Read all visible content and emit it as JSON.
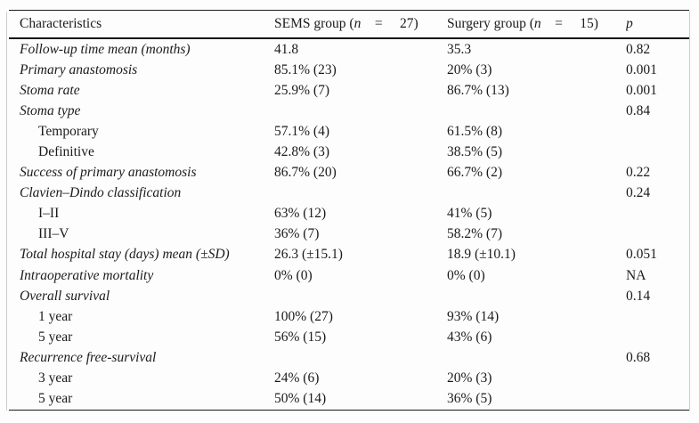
{
  "colors": {
    "background": "#fdfdfd",
    "text": "#1b1b1b",
    "rule": "#1a1a1a",
    "scan_edge": "#cccccc"
  },
  "table": {
    "header": {
      "characteristics": "Characteristics",
      "sems": {
        "prefix": "SEMS group (",
        "n": "n",
        "rest": " =  27)"
      },
      "surgery": {
        "prefix": "Surgery group (",
        "n": "n",
        "rest": " =  15)"
      },
      "p": "p"
    },
    "rows": [
      {
        "label": "Follow-up time mean (months)",
        "indent": false,
        "sems": "41.8",
        "surgery": "35.3",
        "p": "0.82"
      },
      {
        "label": "Primary anastomosis",
        "indent": false,
        "sems": "85.1% (23)",
        "surgery": "20% (3)",
        "p": "0.001"
      },
      {
        "label": "Stoma rate",
        "indent": false,
        "sems": "25.9% (7)",
        "surgery": "86.7% (13)",
        "p": "0.001"
      },
      {
        "label": "Stoma type",
        "indent": false,
        "sems": "",
        "surgery": "",
        "p": "0.84"
      },
      {
        "label": "Temporary",
        "indent": true,
        "sems": "57.1% (4)",
        "surgery": "61.5% (8)",
        "p": ""
      },
      {
        "label": "Definitive",
        "indent": true,
        "sems": "42.8% (3)",
        "surgery": "38.5% (5)",
        "p": ""
      },
      {
        "label": "Success of primary anastomosis",
        "indent": false,
        "sems": "86.7% (20)",
        "surgery": "66.7% (2)",
        "p": "0.22"
      },
      {
        "label": "Clavien–Dindo classification",
        "indent": false,
        "sems": "",
        "surgery": "",
        "p": "0.24"
      },
      {
        "label": "I–II",
        "indent": true,
        "sems": "63% (12)",
        "surgery": "41% (5)",
        "p": ""
      },
      {
        "label": "III–V",
        "indent": true,
        "sems": "36% (7)",
        "surgery": "58.2% (7)",
        "p": ""
      },
      {
        "label": "Total hospital stay (days) mean (±SD)",
        "indent": false,
        "sems": "26.3 (±15.1)",
        "surgery": "18.9 (±10.1)",
        "p": "0.051"
      },
      {
        "label": "Intraoperative mortality",
        "indent": false,
        "sems": "0% (0)",
        "surgery": "0% (0)",
        "p": "NA"
      },
      {
        "label": "Overall survival",
        "indent": false,
        "sems": "",
        "surgery": "",
        "p": "0.14"
      },
      {
        "label": "1 year",
        "indent": true,
        "sems": "100% (27)",
        "surgery": "93% (14)",
        "p": ""
      },
      {
        "label": "5 year",
        "indent": true,
        "sems": "56% (15)",
        "surgery": "43% (6)",
        "p": ""
      },
      {
        "label": "Recurrence free-survival",
        "indent": false,
        "sems": "",
        "surgery": "",
        "p": "0.68"
      },
      {
        "label": "3 year",
        "indent": true,
        "sems": "24% (6)",
        "surgery": "20% (3)",
        "p": ""
      },
      {
        "label": "5 year",
        "indent": true,
        "sems": "50% (14)",
        "surgery": "36% (5)",
        "p": ""
      }
    ]
  }
}
